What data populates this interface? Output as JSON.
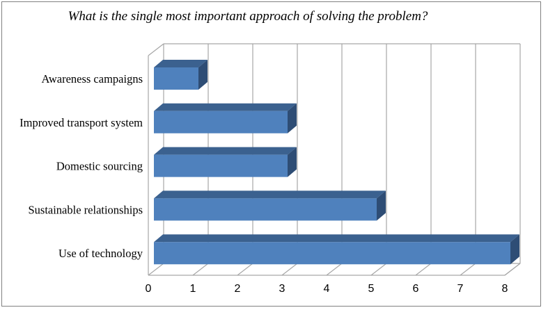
{
  "title": "What is the single most important approach of solving the problem?",
  "chart_data": {
    "type": "bar",
    "orientation": "horizontal",
    "style": "3d",
    "title": "What is the single most important approach of solving the problem?",
    "categories": [
      "Awareness campaigns",
      "Improved transport system",
      "Domestic sourcing",
      "Sustainable relationships",
      "Use of technology"
    ],
    "values": [
      1,
      3,
      3,
      5,
      8
    ],
    "xlabel": "",
    "ylabel": "",
    "xlim": [
      0,
      8
    ],
    "x_ticks": [
      "0",
      "1",
      "2",
      "3",
      "4",
      "5",
      "6",
      "7",
      "8"
    ],
    "grid": true,
    "legend": "none",
    "colors": {
      "bar_front": "#4F81BD",
      "bar_top": "#3B618F",
      "bar_side": "#2E4D75",
      "gridline": "#A6A6A6",
      "axis_text": "#000000",
      "frame_border": "#808080",
      "background": "#FFFFFF"
    }
  }
}
